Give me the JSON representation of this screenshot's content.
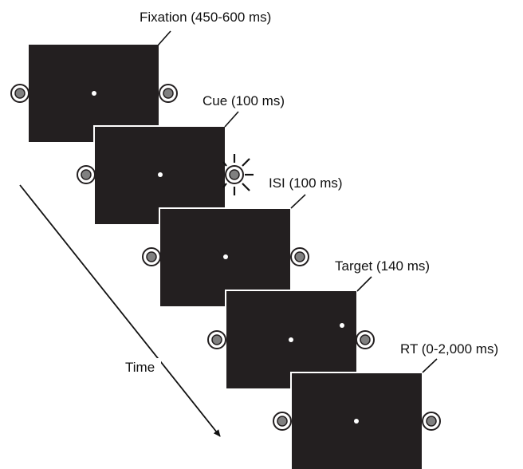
{
  "stages": [
    {
      "id": "fixation",
      "label": "Fixation (450-600 ms)"
    },
    {
      "id": "cue",
      "label": "Cue (100 ms)"
    },
    {
      "id": "isi",
      "label": "ISI (100 ms)"
    },
    {
      "id": "target",
      "label": "Target (140 ms)"
    },
    {
      "id": "rt",
      "label": "RT (0-2,000 ms)"
    }
  ],
  "time_label": "Time",
  "colors": {
    "screen": "#231f20",
    "led_fill": "#808080",
    "text": "#111111"
  }
}
